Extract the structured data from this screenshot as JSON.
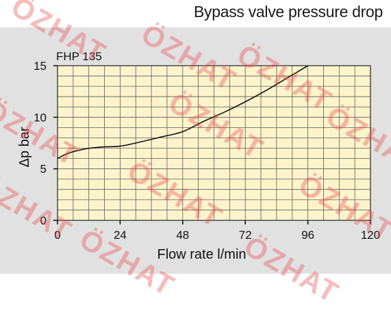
{
  "title": "Bypass valve pressure drop",
  "watermark_text": "ÖZHAT",
  "chart_data": {
    "type": "line",
    "annotation": "FHP 135",
    "xlabel": "Flow rate l/min",
    "ylabel": "Δp bar",
    "xlim": [
      0,
      120
    ],
    "ylim": [
      0,
      15
    ],
    "xticks": [
      0,
      24,
      48,
      72,
      96,
      120
    ],
    "yticks": [
      0,
      5,
      10,
      15
    ],
    "x_minor_step": 6,
    "y_minor_step": 1,
    "grid": true,
    "series": [
      {
        "x": [
          0,
          4,
          10,
          16,
          24,
          30,
          40,
          48,
          56,
          64,
          72,
          80,
          88,
          96
        ],
        "y": [
          6.0,
          6.5,
          6.9,
          7.1,
          7.2,
          7.5,
          8.1,
          8.6,
          9.6,
          10.5,
          11.5,
          12.6,
          13.8,
          15.0
        ]
      }
    ],
    "colors": {
      "plot_background": "#fdf4cc",
      "grid": "#5a5a5a",
      "line": "#111111",
      "panel": "#e1e1e1"
    }
  }
}
